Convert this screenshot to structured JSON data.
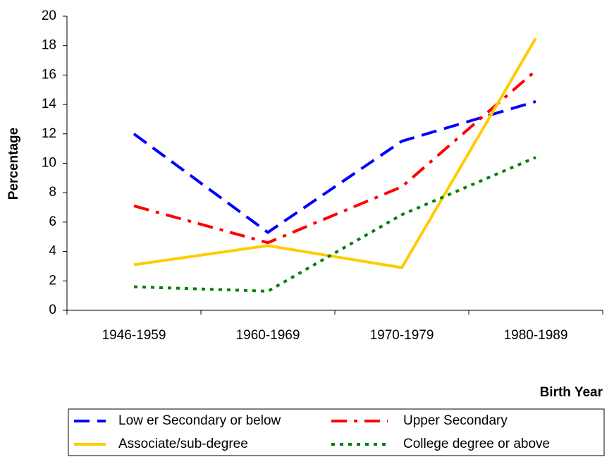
{
  "chart_data": {
    "type": "line",
    "x_label": "Birth Year",
    "y_label": "Percentage",
    "categories": [
      "1946-1959",
      "1960-1969",
      "1970-1979",
      "1980-1989"
    ],
    "series": [
      {
        "name": "Low er Secondary or below",
        "color": "#0000ff",
        "dash": "dashed",
        "values": [
          12.0,
          5.3,
          11.5,
          14.2
        ]
      },
      {
        "name": "Upper Secondary",
        "color": "#ff0000",
        "dash": "dashdot",
        "values": [
          7.1,
          4.6,
          8.4,
          16.3
        ]
      },
      {
        "name": "Associate/sub-degree",
        "color": "#ffcc00",
        "dash": "solid",
        "values": [
          3.1,
          4.4,
          2.9,
          18.5
        ]
      },
      {
        "name": "College degree or above",
        "color": "#008000",
        "dash": "dotted",
        "values": [
          1.6,
          1.3,
          6.5,
          10.4
        ]
      }
    ],
    "ylim": [
      0,
      20
    ],
    "yticks": [
      0,
      2,
      4,
      6,
      8,
      10,
      12,
      14,
      16,
      18,
      20
    ],
    "grid": false
  }
}
